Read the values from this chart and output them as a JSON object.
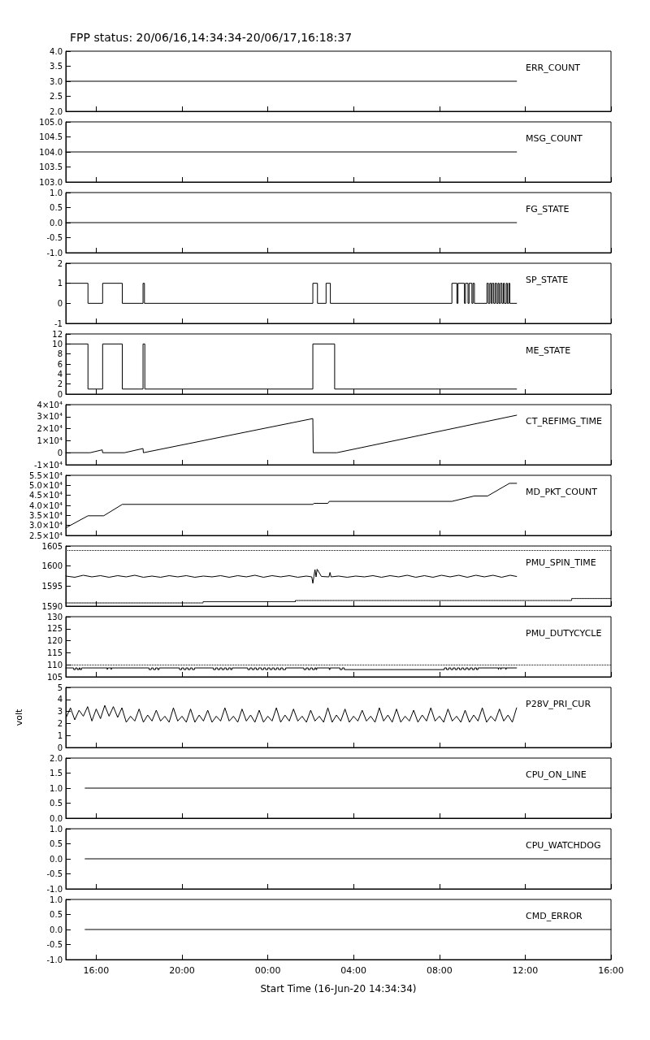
{
  "chart_data": [
    {
      "type": "line",
      "title": "FPP status: 20/06/16,14:34:34-20/06/17,16:18:37",
      "xlim": [
        "--06-16T14:35",
        "--06-17T16:00"
      ],
      "xticks": [
        {
          "value": "--06-16T16:00",
          "label": null
        },
        {
          "value": "--06-16T20:00",
          "label": null
        },
        {
          "value": "--06-17T00:00",
          "label": null
        },
        {
          "value": "--06-17T04:00",
          "label": null
        },
        {
          "value": "--06-17T08:00",
          "label": null
        },
        {
          "value": "--06-17T12:00",
          "label": null
        },
        {
          "value": "--06-17T16:00",
          "label": null
        }
      ],
      "ylim": [
        2,
        4
      ],
      "yticks": [
        {
          "value": 2,
          "label": "2.0"
        },
        2.5,
        {
          "value": 3,
          "label": "3.0"
        },
        3.5,
        {
          "value": 4,
          "label": "4.0"
        }
      ],
      "tick_labels": "y",
      "series": [
        {
          "name": "ERR_COUNT",
          "color": "#000000",
          "x": [
            "--06-16T14:35",
            "--06-17T11:36"
          ],
          "values": [
            3,
            3
          ]
        }
      ]
    },
    {
      "type": "line",
      "xlim": [
        "--06-16T14:35",
        "--06-17T16:00"
      ],
      "xticks": [
        {
          "value": "--06-16T16:00",
          "label": null
        },
        {
          "value": "--06-16T20:00",
          "label": null
        },
        {
          "value": "--06-17T00:00",
          "label": null
        },
        {
          "value": "--06-17T04:00",
          "label": null
        },
        {
          "value": "--06-17T08:00",
          "label": null
        },
        {
          "value": "--06-17T12:00",
          "label": null
        },
        {
          "value": "--06-17T16:00",
          "label": null
        }
      ],
      "ylim": [
        103,
        105
      ],
      "yticks": [
        {
          "value": 103,
          "label": "103.0"
        },
        103.5,
        {
          "value": 104,
          "label": "104.0"
        },
        104.5,
        {
          "value": 105,
          "label": "105.0"
        }
      ],
      "tick_labels": "y",
      "series": [
        {
          "name": "MSG_COUNT",
          "color": "#000000",
          "x": [
            "--06-16T14:35",
            "--06-17T11:36"
          ],
          "values": [
            104,
            104
          ]
        }
      ]
    },
    {
      "type": "line",
      "xlim": [
        "--06-16T14:35",
        "--06-17T16:00"
      ],
      "xticks": [
        {
          "value": "--06-16T16:00",
          "label": null
        },
        {
          "value": "--06-16T20:00",
          "label": null
        },
        {
          "value": "--06-17T00:00",
          "label": null
        },
        {
          "value": "--06-17T04:00",
          "label": null
        },
        {
          "value": "--06-17T08:00",
          "label": null
        },
        {
          "value": "--06-17T12:00",
          "label": null
        },
        {
          "value": "--06-17T16:00",
          "label": null
        }
      ],
      "ylim": [
        -1,
        1
      ],
      "yticks": [
        {
          "value": -1,
          "label": "-1.0"
        },
        -0.5,
        {
          "value": 0,
          "label": "0.0"
        },
        0.5,
        {
          "value": 1,
          "label": "1.0"
        }
      ],
      "tick_labels": "y",
      "series": [
        {
          "name": "FG_STATE",
          "color": "#000000",
          "x": [
            "--06-16T14:35",
            "--06-17T11:36"
          ],
          "values": [
            0,
            0
          ]
        }
      ]
    },
    {
      "type": "step",
      "xlim": [
        "--06-16T14:35",
        "--06-17T16:00"
      ],
      "xticks": [
        {
          "value": "--06-16T16:00",
          "label": null
        },
        {
          "value": "--06-16T20:00",
          "label": null
        },
        {
          "value": "--06-17T00:00",
          "label": null
        },
        {
          "value": "--06-17T04:00",
          "label": null
        },
        {
          "value": "--06-17T08:00",
          "label": null
        },
        {
          "value": "--06-17T12:00",
          "label": null
        },
        {
          "value": "--06-17T16:00",
          "label": null
        }
      ],
      "ylim": [
        -1,
        2
      ],
      "yticks": [
        -1,
        0,
        1,
        2
      ],
      "tick_labels": "y",
      "series": [
        {
          "name": "SP_STATE",
          "color": "#000000",
          "x": [
            "--06-16T14:35",
            "--06-16T15:37",
            "--06-16T16:18",
            "--06-16T17:13",
            "--06-16T18:11",
            "--06-16T18:15",
            "--06-17T02:06",
            "--06-17T02:19",
            "--06-17T02:43",
            "--06-17T02:55",
            "--06-17T08:35",
            "--06-17T08:49",
            "--06-17T08:52",
            "--06-17T09:10",
            "--06-17T09:13",
            "--06-17T09:20",
            "--06-17T09:23",
            "--06-17T09:31",
            "--06-17T09:34",
            "--06-17T09:38",
            "--06-17T10:13",
            "--06-17T10:17",
            "--06-17T10:21",
            "--06-17T10:25",
            "--06-17T10:28",
            "--06-17T10:32",
            "--06-17T10:36",
            "--06-17T10:40",
            "--06-17T10:44",
            "--06-17T10:47",
            "--06-17T10:51",
            "--06-17T10:55",
            "--06-17T10:59",
            "--06-17T11:02",
            "--06-17T11:07",
            "--06-17T11:10",
            "--06-17T11:14",
            "--06-17T11:17",
            "--06-17T11:36"
          ],
          "values": [
            1,
            0,
            1,
            0,
            1,
            0,
            1,
            0,
            1,
            0,
            1,
            0,
            1,
            0,
            1,
            0,
            1,
            0,
            1,
            0,
            1,
            0,
            1,
            0,
            1,
            0,
            1,
            0,
            1,
            0,
            1,
            0,
            1,
            0,
            1,
            0,
            1,
            0,
            0
          ]
        }
      ]
    },
    {
      "type": "step",
      "xlim": [
        "--06-16T14:35",
        "--06-17T16:00"
      ],
      "xticks": [
        {
          "value": "--06-16T16:00",
          "label": null
        },
        {
          "value": "--06-16T20:00",
          "label": null
        },
        {
          "value": "--06-17T00:00",
          "label": null
        },
        {
          "value": "--06-17T04:00",
          "label": null
        },
        {
          "value": "--06-17T08:00",
          "label": null
        },
        {
          "value": "--06-17T12:00",
          "label": null
        },
        {
          "value": "--06-17T16:00",
          "label": null
        }
      ],
      "ylim": [
        0,
        12
      ],
      "yticks": [
        0,
        2,
        4,
        6,
        8,
        10,
        12
      ],
      "tick_labels": "y",
      "series": [
        {
          "name": "ME_STATE",
          "color": "#000000",
          "x": [
            "--06-16T14:35",
            "--06-16T15:37",
            "--06-16T16:18",
            "--06-16T17:13",
            "--06-16T18:11",
            "--06-16T18:16",
            "--06-17T02:06",
            "--06-17T03:07",
            "--06-17T11:36"
          ],
          "values": [
            10,
            1,
            10,
            1,
            10,
            1,
            10,
            1,
            1
          ]
        }
      ]
    },
    {
      "type": "line",
      "xlim": [
        "--06-16T14:35",
        "--06-17T16:00"
      ],
      "xticks": [
        {
          "value": "--06-16T16:00",
          "label": null
        },
        {
          "value": "--06-16T20:00",
          "label": null
        },
        {
          "value": "--06-17T00:00",
          "label": null
        },
        {
          "value": "--06-17T04:00",
          "label": null
        },
        {
          "value": "--06-17T08:00",
          "label": null
        },
        {
          "value": "--06-17T12:00",
          "label": null
        },
        {
          "value": "--06-17T16:00",
          "label": null
        }
      ],
      "ylim": [
        -10000,
        40000
      ],
      "yticks": [
        {
          "value": -10000,
          "label": "-1×10⁴"
        },
        0,
        {
          "value": 10000,
          "label": "1×10⁴"
        },
        {
          "value": 20000,
          "label": "2×10⁴"
        },
        {
          "value": 30000,
          "label": "3×10⁴"
        },
        {
          "value": 40000,
          "label": "4×10⁴"
        }
      ],
      "tick_labels": "y",
      "series": [
        {
          "name": "CT_REFIMG_TIME",
          "color": "#000000",
          "x": [
            "--06-16T14:35",
            "--06-16T15:43",
            "--06-16T16:17",
            "--06-16T16:18",
            "--06-16T17:19",
            "--06-16T18:11",
            "--06-16T18:12",
            "--06-17T02:06",
            "--06-17T02:07",
            "--06-17T03:13",
            "--06-17T11:36"
          ],
          "values": [
            0,
            0,
            2400,
            0,
            0,
            3500,
            0,
            28400,
            0,
            0,
            31200
          ]
        }
      ]
    },
    {
      "type": "line",
      "xlim": [
        "--06-16T14:35",
        "--06-17T16:00"
      ],
      "xticks": [
        {
          "value": "--06-16T16:00",
          "label": null
        },
        {
          "value": "--06-16T20:00",
          "label": null
        },
        {
          "value": "--06-17T00:00",
          "label": null
        },
        {
          "value": "--06-17T04:00",
          "label": null
        },
        {
          "value": "--06-17T08:00",
          "label": null
        },
        {
          "value": "--06-17T12:00",
          "label": null
        },
        {
          "value": "--06-17T16:00",
          "label": null
        }
      ],
      "ylim": [
        25000,
        55000
      ],
      "yticks": [
        {
          "value": 25000,
          "label": "2.5×10⁴"
        },
        {
          "value": 30000,
          "label": "3.0×10⁴"
        },
        {
          "value": 35000,
          "label": "3.5×10⁴"
        },
        {
          "value": 40000,
          "label": "4.0×10⁴"
        },
        {
          "value": 45000,
          "label": "4.5×10⁴"
        },
        {
          "value": 50000,
          "label": "5.0×10⁴"
        },
        {
          "value": 55000,
          "label": "5.5×10⁴"
        }
      ],
      "tick_labels": "y",
      "series": [
        {
          "name": "MD_PKT_COUNT",
          "color": "#000000",
          "x": [
            "--06-16T14:35",
            "--06-16T15:37",
            "--06-16T16:21",
            "--06-16T17:13",
            "--06-17T02:06",
            "--06-17T02:09",
            "--06-17T02:48",
            "--06-17T02:52",
            "--06-17T08:35",
            "--06-17T09:38",
            "--06-17T10:15",
            "--06-17T11:16",
            "--06-17T11:36"
          ],
          "values": [
            28800,
            34800,
            34800,
            40500,
            40500,
            41000,
            41000,
            42000,
            42000,
            44700,
            44700,
            51000,
            51000
          ]
        }
      ]
    },
    {
      "type": "line",
      "xlim": [
        "--06-16T14:35",
        "--06-17T16:00"
      ],
      "xticks": [
        {
          "value": "--06-16T16:00",
          "label": null
        },
        {
          "value": "--06-16T20:00",
          "label": null
        },
        {
          "value": "--06-17T00:00",
          "label": null
        },
        {
          "value": "--06-17T04:00",
          "label": null
        },
        {
          "value": "--06-17T08:00",
          "label": null
        },
        {
          "value": "--06-17T12:00",
          "label": null
        },
        {
          "value": "--06-17T16:00",
          "label": null
        }
      ],
      "ylim": [
        1590,
        1605
      ],
      "yticks": [
        1590,
        1595,
        1600,
        1605
      ],
      "tick_labels": "y",
      "ref_lines": [
        {
          "axis": "y",
          "value": 1604,
          "color": "#000000",
          "line_style": "dotted"
        }
      ],
      "series": [
        {
          "name": "PMU_SPIN_TIME",
          "color": "#000000",
          "x": [
            "--06-16T14:35",
            "--06-16T15:00",
            "--06-16T15:24",
            "--06-16T15:48",
            "--06-16T16:12",
            "--06-16T16:36",
            "--06-16T17:00",
            "--06-16T17:24",
            "--06-16T17:48",
            "--06-16T18:12",
            "--06-16T18:36",
            "--06-16T19:00",
            "--06-16T19:24",
            "--06-16T19:48",
            "--06-16T20:12",
            "--06-16T20:36",
            "--06-16T21:00",
            "--06-16T21:24",
            "--06-16T21:48",
            "--06-16T22:12",
            "--06-16T22:36",
            "--06-16T23:00",
            "--06-16T23:24",
            "--06-16T23:48",
            "--06-17T00:12",
            "--06-17T00:36",
            "--06-17T01:00",
            "--06-17T01:24",
            "--06-17T01:48",
            "--06-17T02:03",
            "--06-17T02:06",
            "--06-17T02:09",
            "--06-17T02:12",
            "--06-17T02:15",
            "--06-17T02:18",
            "--06-17T02:30",
            "--06-17T02:51",
            "--06-17T02:54",
            "--06-17T02:57",
            "--06-17T03:18",
            "--06-17T03:42",
            "--06-17T04:06",
            "--06-17T04:30",
            "--06-17T04:54",
            "--06-17T05:18",
            "--06-17T05:42",
            "--06-17T06:06",
            "--06-17T06:30",
            "--06-17T06:54",
            "--06-17T07:18",
            "--06-17T07:42",
            "--06-17T08:06",
            "--06-17T08:30",
            "--06-17T08:54",
            "--06-17T09:18",
            "--06-17T09:42",
            "--06-17T10:06",
            "--06-17T10:30",
            "--06-17T10:54",
            "--06-17T11:18",
            "--06-17T11:36"
          ],
          "values": [
            1597.5,
            1597.2,
            1597.7,
            1597.3,
            1597.6,
            1597.2,
            1597.6,
            1597.3,
            1597.7,
            1597.2,
            1597.5,
            1597.2,
            1597.6,
            1597.3,
            1597.6,
            1597.2,
            1597.5,
            1597.3,
            1597.6,
            1597.2,
            1597.6,
            1597.3,
            1597.7,
            1597.2,
            1597.6,
            1597.3,
            1597.6,
            1597.2,
            1597.5,
            1597.3,
            1595.7,
            1597.4,
            1599.1,
            1597.3,
            1599.2,
            1597.4,
            1597.3,
            1598.4,
            1597.3,
            1597.5,
            1597.2,
            1597.5,
            1597.3,
            1597.6,
            1597.2,
            1597.6,
            1597.3,
            1597.7,
            1597.2,
            1597.6,
            1597.2,
            1597.7,
            1597.3,
            1597.7,
            1597.2,
            1597.7,
            1597.3,
            1597.7,
            1597.2,
            1597.7,
            1597.4
          ]
        },
        {
          "type": "step",
          "color": "#000000",
          "line_style": "dotted",
          "x": [
            "--06-16T14:35",
            "--06-16T20:59",
            "--06-17T01:17",
            "--06-17T14:10",
            "--06-17T16:00"
          ],
          "values": [
            1590.8,
            1591.1,
            1591.4,
            1591.9,
            1591.9
          ]
        }
      ]
    },
    {
      "type": "step",
      "xlim": [
        "--06-16T14:35",
        "--06-17T16:00"
      ],
      "xticks": [
        {
          "value": "--06-16T16:00",
          "label": null
        },
        {
          "value": "--06-16T20:00",
          "label": null
        },
        {
          "value": "--06-17T00:00",
          "label": null
        },
        {
          "value": "--06-17T04:00",
          "label": null
        },
        {
          "value": "--06-17T08:00",
          "label": null
        },
        {
          "value": "--06-17T12:00",
          "label": null
        },
        {
          "value": "--06-17T16:00",
          "label": null
        }
      ],
      "ylim": [
        105,
        130
      ],
      "yticks": [
        105,
        110,
        115,
        120,
        125,
        130
      ],
      "tick_labels": "y",
      "ref_lines": [
        {
          "axis": "y",
          "value": 110,
          "color": "#000000",
          "line_style": "dotted"
        }
      ],
      "series": [
        {
          "name": "PMU_DUTYCYCLE",
          "color": "#000000",
          "x": [
            "--06-16T14:35",
            "--06-16T14:57",
            "--06-16T15:02",
            "--06-16T15:07",
            "--06-16T15:12",
            "--06-16T15:15",
            "--06-16T15:19",
            "--06-16T16:31",
            "--06-16T16:32",
            "--06-16T16:42",
            "--06-16T16:43",
            "--06-16T18:28",
            "--06-16T18:34",
            "--06-16T18:40",
            "--06-16T18:46",
            "--06-16T18:52",
            "--06-16T18:56",
            "--06-16T19:53",
            "--06-16T19:59",
            "--06-16T20:05",
            "--06-16T20:11",
            "--06-16T20:17",
            "--06-16T20:23",
            "--06-16T20:29",
            "--06-16T20:35",
            "--06-16T21:28",
            "--06-16T21:34",
            "--06-16T21:40",
            "--06-16T21:46",
            "--06-16T21:52",
            "--06-16T21:58",
            "--06-16T22:04",
            "--06-16T22:10",
            "--06-16T22:16",
            "--06-16T22:20",
            "--06-16T23:04",
            "--06-16T23:10",
            "--06-16T23:16",
            "--06-16T23:22",
            "--06-16T23:28",
            "--06-16T23:34",
            "--06-16T23:42",
            "--06-16T23:48",
            "--06-16T23:54",
            "--06-17T00:00",
            "--06-17T00:06",
            "--06-17T00:12",
            "--06-17T00:18",
            "--06-17T00:24",
            "--06-17T00:30",
            "--06-17T00:36",
            "--06-17T00:42",
            "--06-17T00:50",
            "--06-17T01:41",
            "--06-17T01:47",
            "--06-17T01:53",
            "--06-17T01:59",
            "--06-17T02:05",
            "--06-17T02:11",
            "--06-17T02:15",
            "--06-17T02:17",
            "--06-17T02:52",
            "--06-17T02:54",
            "--06-17T03:22",
            "--06-17T03:28",
            "--06-17T03:34",
            "--06-17T08:14",
            "--06-17T08:20",
            "--06-17T08:26",
            "--06-17T08:32",
            "--06-17T08:38",
            "--06-17T08:44",
            "--06-17T08:50",
            "--06-17T08:56",
            "--06-17T09:02",
            "--06-17T09:08",
            "--06-17T09:14",
            "--06-17T09:20",
            "--06-17T09:26",
            "--06-17T09:32",
            "--06-17T09:38",
            "--06-17T09:44",
            "--06-17T09:48",
            "--06-17T10:45",
            "--06-17T10:46",
            "--06-17T10:52",
            "--06-17T10:53",
            "--06-17T11:06",
            "--06-17T11:07",
            "--06-17T11:36"
          ],
          "values": [
            108.7,
            108,
            108.7,
            108,
            108.7,
            108,
            108.7,
            108,
            108.7,
            108,
            108.7,
            108,
            108.7,
            108,
            108.7,
            108,
            108.7,
            108,
            108.7,
            108,
            108.7,
            108,
            108.7,
            108,
            108.7,
            108,
            108.7,
            108,
            108.7,
            108,
            108.7,
            108,
            108.7,
            108,
            108.7,
            108,
            108.7,
            108,
            108.7,
            108,
            108.7,
            108,
            108.7,
            108,
            108.7,
            108,
            108.7,
            108,
            108.7,
            108,
            108.7,
            108,
            108.7,
            108,
            108.7,
            108,
            108.7,
            108,
            108.7,
            108,
            108.7,
            108,
            108.7,
            108,
            108.7,
            108,
            108.7,
            108,
            108.7,
            108,
            108.7,
            108,
            108.7,
            108,
            108.7,
            108,
            108.7,
            108,
            108.7,
            108,
            108.7,
            108,
            108.7,
            108,
            108.7,
            108,
            108.7,
            108,
            108.7,
            108.7
          ]
        }
      ]
    },
    {
      "type": "line",
      "ylabel": "volt",
      "xlim": [
        "--06-16T14:35",
        "--06-17T16:00"
      ],
      "xticks": [
        {
          "value": "--06-16T16:00",
          "label": null
        },
        {
          "value": "--06-16T20:00",
          "label": null
        },
        {
          "value": "--06-17T00:00",
          "label": null
        },
        {
          "value": "--06-17T04:00",
          "label": null
        },
        {
          "value": "--06-17T08:00",
          "label": null
        },
        {
          "value": "--06-17T12:00",
          "label": null
        },
        {
          "value": "--06-17T16:00",
          "label": null
        }
      ],
      "ylim": [
        0,
        5
      ],
      "yticks": [
        0,
        1,
        2,
        3,
        4,
        5
      ],
      "tick_labels": "y",
      "series": [
        {
          "name": "P28V_PRI_CUR",
          "color": "#000000",
          "x": [
            "--06-16T14:36",
            "--06-16T14:48",
            "--06-16T15:00",
            "--06-16T15:12",
            "--06-16T15:24",
            "--06-16T15:36",
            "--06-16T15:48",
            "--06-16T16:00",
            "--06-16T16:12",
            "--06-16T16:24",
            "--06-16T16:36",
            "--06-16T16:48",
            "--06-16T17:00",
            "--06-16T17:12",
            "--06-16T17:24",
            "--06-16T17:36",
            "--06-16T17:48",
            "--06-16T18:00",
            "--06-16T18:12",
            "--06-16T18:24",
            "--06-16T18:36",
            "--06-16T18:48",
            "--06-16T19:00",
            "--06-16T19:12",
            "--06-16T19:24",
            "--06-16T19:36",
            "--06-16T19:48",
            "--06-16T20:00",
            "--06-16T20:12",
            "--06-16T20:24",
            "--06-16T20:36",
            "--06-16T20:48",
            "--06-16T21:00",
            "--06-16T21:12",
            "--06-16T21:24",
            "--06-16T21:36",
            "--06-16T21:48",
            "--06-16T22:00",
            "--06-16T22:12",
            "--06-16T22:24",
            "--06-16T22:36",
            "--06-16T22:48",
            "--06-16T23:00",
            "--06-16T23:12",
            "--06-16T23:24",
            "--06-16T23:36",
            "--06-16T23:48",
            "--06-17T00:00",
            "--06-17T00:12",
            "--06-17T00:24",
            "--06-17T00:36",
            "--06-17T00:48",
            "--06-17T01:00",
            "--06-17T01:12",
            "--06-17T01:24",
            "--06-17T01:36",
            "--06-17T01:48",
            "--06-17T02:00",
            "--06-17T02:12",
            "--06-17T02:24",
            "--06-17T02:36",
            "--06-17T02:48",
            "--06-17T03:00",
            "--06-17T03:12",
            "--06-17T03:24",
            "--06-17T03:36",
            "--06-17T03:48",
            "--06-17T04:00",
            "--06-17T04:12",
            "--06-17T04:24",
            "--06-17T04:36",
            "--06-17T04:48",
            "--06-17T05:00",
            "--06-17T05:12",
            "--06-17T05:24",
            "--06-17T05:36",
            "--06-17T05:48",
            "--06-17T06:00",
            "--06-17T06:12",
            "--06-17T06:24",
            "--06-17T06:36",
            "--06-17T06:48",
            "--06-17T07:00",
            "--06-17T07:12",
            "--06-17T07:24",
            "--06-17T07:36",
            "--06-17T07:48",
            "--06-17T08:00",
            "--06-17T08:12",
            "--06-17T08:24",
            "--06-17T08:36",
            "--06-17T08:48",
            "--06-17T09:00",
            "--06-17T09:12",
            "--06-17T09:24",
            "--06-17T09:36",
            "--06-17T09:48",
            "--06-17T10:00",
            "--06-17T10:12",
            "--06-17T10:24",
            "--06-17T10:36",
            "--06-17T10:48",
            "--06-17T11:00",
            "--06-17T11:12",
            "--06-17T11:24",
            "--06-17T11:36"
          ],
          "values": [
            2.5,
            3.3,
            2.3,
            3.1,
            2.6,
            3.4,
            2.2,
            3.2,
            2.4,
            3.5,
            2.6,
            3.4,
            2.5,
            3.3,
            2.1,
            2.6,
            2.2,
            3.2,
            2.1,
            2.7,
            2.2,
            3.1,
            2.2,
            2.6,
            2.1,
            3.3,
            2.2,
            2.6,
            2.1,
            3.2,
            2.1,
            2.7,
            2.2,
            3.1,
            2.1,
            2.6,
            2.2,
            3.3,
            2.2,
            2.6,
            2.1,
            3.2,
            2.2,
            2.7,
            2.1,
            3.1,
            2.1,
            2.6,
            2.2,
            3.3,
            2.1,
            2.7,
            2.2,
            3.2,
            2.2,
            2.6,
            2.1,
            3.1,
            2.2,
            2.6,
            2.1,
            3.3,
            2.1,
            2.7,
            2.2,
            3.2,
            2.1,
            2.6,
            2.2,
            3.1,
            2.2,
            2.6,
            2.1,
            3.3,
            2.2,
            2.7,
            2.1,
            3.2,
            2.1,
            2.6,
            2.2,
            3.1,
            2.1,
            2.7,
            2.2,
            3.3,
            2.2,
            2.6,
            2.1,
            3.2,
            2.2,
            2.6,
            2.1,
            3.1,
            2.1,
            2.7,
            2.2,
            3.3,
            2.1,
            2.6,
            2.2,
            3.2,
            2.2,
            2.7,
            2.1,
            3.3
          ]
        }
      ]
    },
    {
      "type": "line",
      "xlim": [
        "--06-16T14:35",
        "--06-17T16:00"
      ],
      "xticks": [
        {
          "value": "--06-16T16:00",
          "label": null
        },
        {
          "value": "--06-16T20:00",
          "label": null
        },
        {
          "value": "--06-17T00:00",
          "label": null
        },
        {
          "value": "--06-17T04:00",
          "label": null
        },
        {
          "value": "--06-17T08:00",
          "label": null
        },
        {
          "value": "--06-17T12:00",
          "label": null
        },
        {
          "value": "--06-17T16:00",
          "label": null
        }
      ],
      "ylim": [
        0,
        2
      ],
      "yticks": [
        {
          "value": 0,
          "label": "0.0"
        },
        0.5,
        {
          "value": 1,
          "label": "1.0"
        },
        1.5,
        {
          "value": 2,
          "label": "2.0"
        }
      ],
      "tick_labels": "y",
      "series": [
        {
          "name": "CPU_ON_LINE",
          "color": "#000000",
          "x": [
            "--06-16T15:29",
            "--06-17T16:00"
          ],
          "values": [
            1,
            1
          ]
        }
      ]
    },
    {
      "type": "line",
      "xlim": [
        "--06-16T14:35",
        "--06-17T16:00"
      ],
      "xticks": [
        {
          "value": "--06-16T16:00",
          "label": null
        },
        {
          "value": "--06-16T20:00",
          "label": null
        },
        {
          "value": "--06-17T00:00",
          "label": null
        },
        {
          "value": "--06-17T04:00",
          "label": null
        },
        {
          "value": "--06-17T08:00",
          "label": null
        },
        {
          "value": "--06-17T12:00",
          "label": null
        },
        {
          "value": "--06-17T16:00",
          "label": null
        }
      ],
      "ylim": [
        -1,
        1
      ],
      "yticks": [
        {
          "value": -1,
          "label": "-1.0"
        },
        -0.5,
        {
          "value": 0,
          "label": "0.0"
        },
        0.5,
        {
          "value": 1,
          "label": "1.0"
        }
      ],
      "tick_labels": "y",
      "series": [
        {
          "name": "CPU_WATCHDOG",
          "color": "#000000",
          "x": [
            "--06-16T15:29",
            "--06-17T16:00"
          ],
          "values": [
            0,
            0
          ]
        }
      ]
    },
    {
      "type": "line",
      "xlabel": "Start Time (16-Jun-20 14:34:34)",
      "xlim": [
        "--06-16T14:35",
        "--06-17T16:00"
      ],
      "xticks": [
        {
          "value": "--06-16T16:00",
          "label": "16:00"
        },
        {
          "value": "--06-16T20:00",
          "label": "20:00"
        },
        {
          "value": "--06-17T00:00",
          "label": "00:00"
        },
        {
          "value": "--06-17T04:00",
          "label": "04:00"
        },
        {
          "value": "--06-17T08:00",
          "label": "08:00"
        },
        {
          "value": "--06-17T12:00",
          "label": "12:00"
        },
        {
          "value": "--06-17T16:00",
          "label": "16:00"
        }
      ],
      "ylim": [
        -1,
        1
      ],
      "yticks": [
        {
          "value": -1,
          "label": "-1.0"
        },
        -0.5,
        {
          "value": 0,
          "label": "0.0"
        },
        0.5,
        {
          "value": 1,
          "label": "1.0"
        }
      ],
      "series": [
        {
          "name": "CMD_ERROR",
          "color": "#000000",
          "x": [
            "--06-16T15:29",
            "--06-17T16:00"
          ],
          "values": [
            0,
            0
          ]
        }
      ]
    }
  ]
}
